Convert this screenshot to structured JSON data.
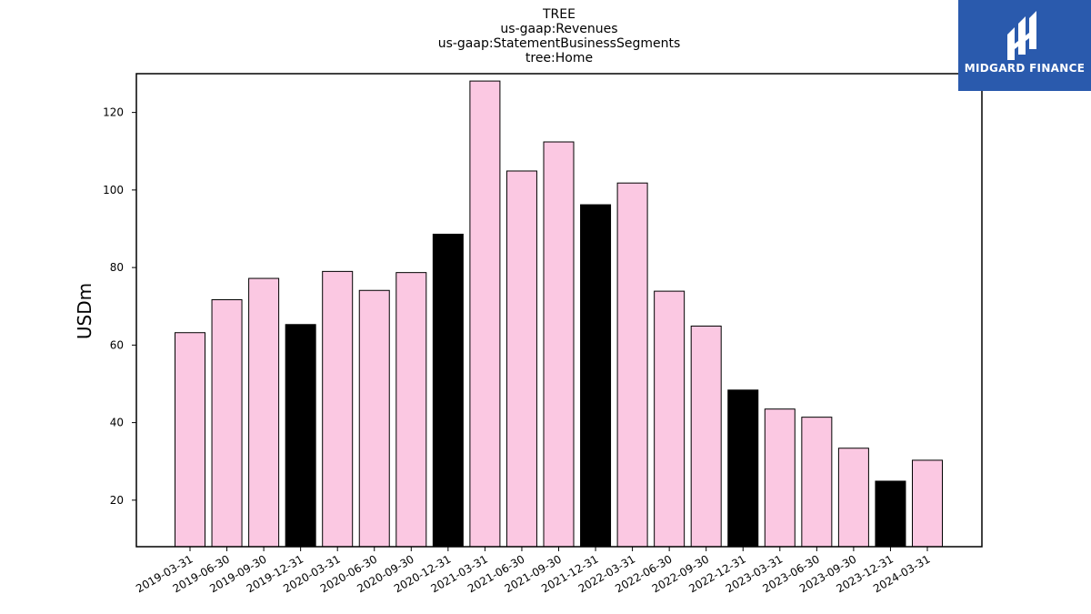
{
  "chart_data": {
    "type": "bar",
    "title_lines": [
      "TREE",
      "us-gaap:Revenues",
      "us-gaap:StatementBusinessSegments",
      "tree:Home"
    ],
    "xlabel": "",
    "ylabel": "USDm",
    "ylim": [
      8,
      130
    ],
    "yticks": [
      20,
      40,
      60,
      80,
      100,
      120
    ],
    "grid": false,
    "colors": {
      "quarter": "#fbc8e2",
      "year_end": "#000000",
      "edge": "#000000"
    },
    "categories": [
      "2019-03-31",
      "2019-06-30",
      "2019-09-30",
      "2019-12-31",
      "2020-03-31",
      "2020-06-30",
      "2020-09-30",
      "2020-12-31",
      "2021-03-31",
      "2021-06-30",
      "2021-09-30",
      "2021-12-31",
      "2022-03-31",
      "2022-06-30",
      "2022-09-30",
      "2022-12-31",
      "2023-03-31",
      "2023-06-30",
      "2023-09-30",
      "2023-12-31",
      "2024-03-31"
    ],
    "values": [
      63.2,
      71.7,
      77.2,
      65.3,
      79.0,
      74.1,
      78.7,
      88.6,
      128.1,
      104.9,
      112.4,
      96.2,
      101.8,
      73.9,
      64.9,
      48.4,
      43.5,
      41.4,
      33.4,
      24.9,
      30.3
    ],
    "highlight": [
      false,
      false,
      false,
      true,
      false,
      false,
      false,
      true,
      false,
      false,
      false,
      true,
      false,
      false,
      false,
      true,
      false,
      false,
      false,
      true,
      false
    ]
  },
  "logo": {
    "text": "MIDGARD FINANCE"
  }
}
